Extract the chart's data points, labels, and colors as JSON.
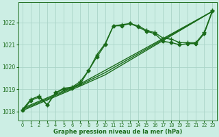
{
  "title": "Graphe pression niveau de la mer (hPa)",
  "bg_color": "#cceee4",
  "line_color": "#1a6b1a",
  "grid_color": "#aad4c8",
  "xlim": [
    -0.5,
    23.5
  ],
  "ylim": [
    1017.6,
    1022.9
  ],
  "yticks": [
    1018,
    1019,
    1020,
    1021,
    1022
  ],
  "xticks": [
    0,
    1,
    2,
    3,
    4,
    5,
    6,
    7,
    8,
    9,
    10,
    11,
    12,
    13,
    14,
    15,
    16,
    17,
    18,
    19,
    20,
    21,
    22,
    23
  ],
  "series": [
    {
      "x": [
        0,
        1,
        2,
        3,
        4,
        5,
        6,
        7,
        8,
        9,
        10,
        11,
        12,
        13,
        14,
        15,
        16,
        17,
        18,
        19,
        20,
        21,
        22,
        23
      ],
      "y": [
        1018.1,
        1018.55,
        1018.7,
        1018.3,
        1018.85,
        1019.05,
        1019.1,
        1019.35,
        1019.85,
        1020.55,
        1021.05,
        1021.85,
        1021.9,
        1021.95,
        1021.85,
        1021.65,
        1021.55,
        1021.3,
        1021.25,
        1021.1,
        1021.1,
        1021.1,
        1021.55,
        1022.55
      ],
      "marker": "+",
      "markersize": 4.0,
      "linewidth": 1.0,
      "zorder": 3
    },
    {
      "x": [
        0,
        1,
        2,
        3,
        4,
        5,
        6,
        7,
        8,
        9,
        10,
        11,
        12,
        13,
        14,
        15,
        16,
        17,
        18,
        19,
        20,
        21,
        22,
        23
      ],
      "y": [
        1018.05,
        1018.5,
        1018.65,
        1018.3,
        1018.85,
        1019.0,
        1019.05,
        1019.25,
        1019.85,
        1020.45,
        1021.0,
        1021.85,
        1021.85,
        1021.95,
        1021.8,
        1021.6,
        1021.5,
        1021.15,
        1021.1,
        1021.0,
        1021.05,
        1021.05,
        1021.5,
        1022.5
      ],
      "marker": "D",
      "markersize": 2.5,
      "linewidth": 1.0,
      "zorder": 3
    },
    {
      "x": [
        0,
        7,
        10,
        23
      ],
      "y": [
        1018.05,
        1019.15,
        1019.65,
        1022.5
      ],
      "marker": null,
      "markersize": 0,
      "linewidth": 1.0,
      "zorder": 2
    },
    {
      "x": [
        0,
        7,
        10,
        23
      ],
      "y": [
        1018.1,
        1019.2,
        1019.75,
        1022.5
      ],
      "marker": null,
      "markersize": 0,
      "linewidth": 1.0,
      "zorder": 2
    },
    {
      "x": [
        0,
        7,
        10,
        23
      ],
      "y": [
        1018.15,
        1019.25,
        1019.85,
        1022.5
      ],
      "marker": null,
      "markersize": 0,
      "linewidth": 1.0,
      "zorder": 2
    }
  ]
}
